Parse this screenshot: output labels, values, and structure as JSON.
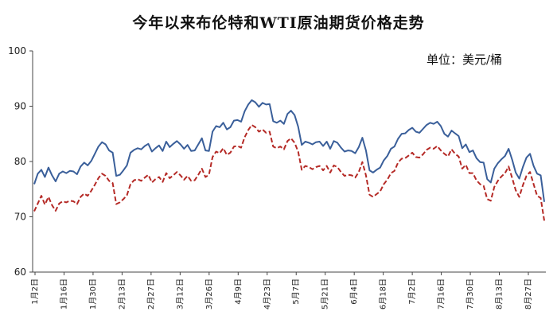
{
  "chart_data": {
    "type": "line",
    "title": "今年以来布伦特和WTI原油期货价格走势",
    "unit_label": "单位：美元/桶",
    "ylim": [
      60,
      100
    ],
    "yticks": [
      60,
      70,
      80,
      90,
      100
    ],
    "xticks": [
      "1月2日",
      "1月16日",
      "1月30日",
      "2月13日",
      "2月27日",
      "3月12日",
      "3月26日",
      "4月9日",
      "4月23日",
      "5月7日",
      "5月21日",
      "6月4日",
      "6月18日",
      "7月2日",
      "7月16日",
      "7月30日",
      "8月13日",
      "8月27日"
    ],
    "colors": {
      "brent": "#3a5f9a",
      "wti": "#b52a26",
      "axis": "#444444"
    },
    "series": [
      {
        "key": "brent",
        "style": "solid",
        "values": [
          [
            0,
            75.9
          ],
          [
            1,
            77.8
          ],
          [
            2,
            78.5
          ],
          [
            3,
            77.2
          ],
          [
            4,
            78.9
          ],
          [
            5,
            77.5
          ],
          [
            6,
            76.4
          ],
          [
            7,
            77.8
          ],
          [
            8,
            78.2
          ],
          [
            9,
            77.9
          ],
          [
            10,
            78.3
          ],
          [
            11,
            78.2
          ],
          [
            12,
            77.7
          ],
          [
            13,
            79.1
          ],
          [
            14,
            79.8
          ],
          [
            15,
            79.3
          ],
          [
            16,
            80.1
          ],
          [
            17,
            81.4
          ],
          [
            18,
            82.7
          ],
          [
            19,
            83.5
          ],
          [
            20,
            83.1
          ],
          [
            21,
            82.0
          ],
          [
            22,
            81.6
          ],
          [
            23,
            77.4
          ],
          [
            24,
            77.6
          ],
          [
            25,
            78.4
          ],
          [
            26,
            79.3
          ],
          [
            27,
            81.6
          ],
          [
            28,
            82.1
          ],
          [
            29,
            82.4
          ],
          [
            30,
            82.2
          ],
          [
            31,
            82.8
          ],
          [
            32,
            83.2
          ],
          [
            33,
            81.8
          ],
          [
            34,
            82.4
          ],
          [
            35,
            82.9
          ],
          [
            36,
            81.9
          ],
          [
            37,
            83.6
          ],
          [
            38,
            82.6
          ],
          [
            39,
            83.2
          ],
          [
            40,
            83.7
          ],
          [
            41,
            83.1
          ],
          [
            42,
            82.3
          ],
          [
            43,
            83.0
          ],
          [
            44,
            81.9
          ],
          [
            45,
            82.0
          ],
          [
            46,
            83.1
          ],
          [
            47,
            84.2
          ],
          [
            48,
            82.0
          ],
          [
            49,
            81.9
          ],
          [
            50,
            85.4
          ],
          [
            51,
            86.4
          ],
          [
            52,
            86.2
          ],
          [
            53,
            87.0
          ],
          [
            54,
            85.8
          ],
          [
            55,
            86.2
          ],
          [
            56,
            87.4
          ],
          [
            57,
            87.5
          ],
          [
            58,
            87.2
          ],
          [
            59,
            89.1
          ],
          [
            60,
            90.3
          ],
          [
            61,
            91.1
          ],
          [
            62,
            90.7
          ],
          [
            63,
            89.9
          ],
          [
            64,
            90.6
          ],
          [
            65,
            90.3
          ],
          [
            66,
            90.4
          ],
          [
            67,
            87.3
          ],
          [
            68,
            87.0
          ],
          [
            69,
            87.4
          ],
          [
            70,
            86.8
          ],
          [
            71,
            88.6
          ],
          [
            72,
            89.2
          ],
          [
            73,
            88.4
          ],
          [
            74,
            86.3
          ],
          [
            75,
            83.0
          ],
          [
            76,
            83.6
          ],
          [
            77,
            83.4
          ],
          [
            78,
            83.1
          ],
          [
            79,
            83.5
          ],
          [
            80,
            83.6
          ],
          [
            81,
            82.8
          ],
          [
            82,
            83.6
          ],
          [
            83,
            82.3
          ],
          [
            84,
            83.7
          ],
          [
            85,
            83.4
          ],
          [
            86,
            82.5
          ],
          [
            87,
            81.8
          ],
          [
            88,
            82.0
          ],
          [
            89,
            81.9
          ],
          [
            90,
            81.5
          ],
          [
            91,
            82.6
          ],
          [
            92,
            84.3
          ],
          [
            93,
            82.0
          ],
          [
            94,
            78.4
          ],
          [
            95,
            78.0
          ],
          [
            96,
            78.5
          ],
          [
            97,
            78.9
          ],
          [
            98,
            80.2
          ],
          [
            99,
            81.0
          ],
          [
            100,
            82.3
          ],
          [
            101,
            82.7
          ],
          [
            102,
            84.1
          ],
          [
            103,
            85.0
          ],
          [
            104,
            85.1
          ],
          [
            105,
            85.7
          ],
          [
            106,
            86.1
          ],
          [
            107,
            85.4
          ],
          [
            108,
            85.2
          ],
          [
            109,
            85.9
          ],
          [
            110,
            86.6
          ],
          [
            111,
            87.0
          ],
          [
            112,
            86.8
          ],
          [
            113,
            87.2
          ],
          [
            114,
            86.4
          ],
          [
            115,
            85.0
          ],
          [
            116,
            84.5
          ],
          [
            117,
            85.6
          ],
          [
            118,
            85.1
          ],
          [
            119,
            84.6
          ],
          [
            120,
            82.4
          ],
          [
            121,
            83.1
          ],
          [
            122,
            81.7
          ],
          [
            123,
            82.0
          ],
          [
            124,
            80.6
          ],
          [
            125,
            79.9
          ],
          [
            126,
            79.8
          ],
          [
            127,
            76.8
          ],
          [
            128,
            76.2
          ],
          [
            129,
            78.7
          ],
          [
            130,
            79.7
          ],
          [
            131,
            80.4
          ],
          [
            132,
            81.0
          ],
          [
            133,
            82.3
          ],
          [
            134,
            80.3
          ],
          [
            135,
            78.0
          ],
          [
            136,
            76.9
          ],
          [
            137,
            79.0
          ],
          [
            138,
            80.7
          ],
          [
            139,
            81.4
          ],
          [
            140,
            79.2
          ],
          [
            141,
            77.8
          ],
          [
            142,
            77.5
          ],
          [
            143,
            72.7
          ]
        ]
      },
      {
        "key": "wti",
        "style": "dashed",
        "values": [
          [
            0,
            71.0
          ],
          [
            1,
            72.4
          ],
          [
            2,
            73.8
          ],
          [
            3,
            72.2
          ],
          [
            4,
            73.6
          ],
          [
            5,
            72.1
          ],
          [
            6,
            71.1
          ],
          [
            7,
            72.4
          ],
          [
            8,
            72.8
          ],
          [
            9,
            72.6
          ],
          [
            10,
            72.9
          ],
          [
            11,
            72.8
          ],
          [
            12,
            72.3
          ],
          [
            13,
            73.6
          ],
          [
            14,
            74.2
          ],
          [
            15,
            73.8
          ],
          [
            16,
            74.7
          ],
          [
            17,
            75.8
          ],
          [
            18,
            77.0
          ],
          [
            19,
            77.8
          ],
          [
            20,
            77.4
          ],
          [
            21,
            76.5
          ],
          [
            22,
            76.1
          ],
          [
            23,
            72.3
          ],
          [
            24,
            72.6
          ],
          [
            25,
            73.2
          ],
          [
            26,
            73.9
          ],
          [
            27,
            75.9
          ],
          [
            28,
            76.6
          ],
          [
            29,
            76.8
          ],
          [
            30,
            76.5
          ],
          [
            31,
            77.1
          ],
          [
            32,
            77.6
          ],
          [
            33,
            76.2
          ],
          [
            34,
            76.8
          ],
          [
            35,
            77.2
          ],
          [
            36,
            76.3
          ],
          [
            37,
            77.9
          ],
          [
            38,
            77.0
          ],
          [
            39,
            77.5
          ],
          [
            40,
            78.1
          ],
          [
            41,
            77.5
          ],
          [
            42,
            76.7
          ],
          [
            43,
            77.4
          ],
          [
            44,
            76.5
          ],
          [
            45,
            76.6
          ],
          [
            46,
            77.6
          ],
          [
            47,
            78.7
          ],
          [
            48,
            77.2
          ],
          [
            49,
            77.6
          ],
          [
            50,
            80.8
          ],
          [
            51,
            81.8
          ],
          [
            52,
            81.5
          ],
          [
            53,
            82.4
          ],
          [
            54,
            81.2
          ],
          [
            55,
            81.6
          ],
          [
            56,
            82.7
          ],
          [
            57,
            82.8
          ],
          [
            58,
            82.5
          ],
          [
            59,
            84.4
          ],
          [
            60,
            85.7
          ],
          [
            61,
            86.6
          ],
          [
            62,
            86.2
          ],
          [
            63,
            85.4
          ],
          [
            64,
            85.8
          ],
          [
            65,
            85.2
          ],
          [
            66,
            85.4
          ],
          [
            67,
            82.7
          ],
          [
            68,
            82.4
          ],
          [
            69,
            82.7
          ],
          [
            70,
            82.2
          ],
          [
            71,
            83.7
          ],
          [
            72,
            84.2
          ],
          [
            73,
            83.4
          ],
          [
            74,
            81.8
          ],
          [
            75,
            78.5
          ],
          [
            76,
            79.2
          ],
          [
            77,
            79.0
          ],
          [
            78,
            78.6
          ],
          [
            79,
            79.0
          ],
          [
            80,
            79.2
          ],
          [
            81,
            78.4
          ],
          [
            82,
            79.2
          ],
          [
            83,
            78.0
          ],
          [
            84,
            79.3
          ],
          [
            85,
            79.0
          ],
          [
            86,
            78.1
          ],
          [
            87,
            77.4
          ],
          [
            88,
            77.6
          ],
          [
            89,
            77.5
          ],
          [
            90,
            77.1
          ],
          [
            91,
            78.1
          ],
          [
            92,
            79.9
          ],
          [
            93,
            77.5
          ],
          [
            94,
            74.0
          ],
          [
            95,
            73.6
          ],
          [
            96,
            74.1
          ],
          [
            97,
            74.6
          ],
          [
            98,
            75.9
          ],
          [
            99,
            76.7
          ],
          [
            100,
            77.9
          ],
          [
            101,
            78.3
          ],
          [
            102,
            79.8
          ],
          [
            103,
            80.5
          ],
          [
            104,
            80.6
          ],
          [
            105,
            81.1
          ],
          [
            106,
            81.6
          ],
          [
            107,
            80.8
          ],
          [
            108,
            80.7
          ],
          [
            109,
            81.3
          ],
          [
            110,
            82.1
          ],
          [
            111,
            82.5
          ],
          [
            112,
            82.3
          ],
          [
            113,
            82.8
          ],
          [
            114,
            82.0
          ],
          [
            115,
            81.4
          ],
          [
            116,
            80.9
          ],
          [
            117,
            82.2
          ],
          [
            118,
            81.4
          ],
          [
            119,
            80.9
          ],
          [
            120,
            78.7
          ],
          [
            121,
            79.4
          ],
          [
            122,
            77.9
          ],
          [
            123,
            77.9
          ],
          [
            124,
            76.6
          ],
          [
            125,
            75.9
          ],
          [
            126,
            75.6
          ],
          [
            127,
            73.2
          ],
          [
            128,
            72.9
          ],
          [
            129,
            75.4
          ],
          [
            130,
            76.5
          ],
          [
            131,
            77.3
          ],
          [
            132,
            77.9
          ],
          [
            133,
            79.1
          ],
          [
            134,
            77.0
          ],
          [
            135,
            74.8
          ],
          [
            136,
            73.6
          ],
          [
            137,
            75.7
          ],
          [
            138,
            77.4
          ],
          [
            139,
            78.1
          ],
          [
            140,
            75.9
          ],
          [
            141,
            73.8
          ],
          [
            142,
            73.4
          ],
          [
            143,
            69.3
          ]
        ]
      }
    ]
  }
}
